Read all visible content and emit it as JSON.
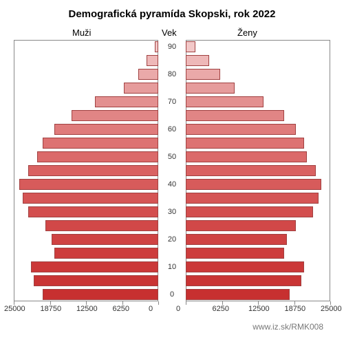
{
  "title": "Demografická pyramída Skopski, rok 2022",
  "labels": {
    "left": "Muži",
    "center": "Vek",
    "right": "Ženy"
  },
  "footer": "www.iz.sk/RMK008",
  "chart": {
    "type": "population-pyramid",
    "background_color": "#ffffff",
    "border_color": "#888888",
    "bar_border_color": "#a04040",
    "font_family": "Arial",
    "title_fontsize": 15,
    "label_fontsize": 13,
    "tick_fontsize": 11,
    "xlim": [
      0,
      25000
    ],
    "xtick_step": 6250,
    "xticks": [
      "25000",
      "18750",
      "12500",
      "6250",
      "0"
    ],
    "xticks_right": [
      "0",
      "6250",
      "12500",
      "18750",
      "25000"
    ],
    "yticks": [
      0,
      10,
      20,
      30,
      40,
      50,
      60,
      70,
      80,
      90
    ],
    "age_step": 5,
    "bars": [
      {
        "age": 0,
        "male": 20000,
        "female": 18000,
        "color_m": "#c73030",
        "color_f": "#c73030"
      },
      {
        "age": 5,
        "male": 21500,
        "female": 20000,
        "color_m": "#c93434",
        "color_f": "#c93434"
      },
      {
        "age": 10,
        "male": 22000,
        "female": 20500,
        "color_m": "#cb3838",
        "color_f": "#cb3838"
      },
      {
        "age": 15,
        "male": 18000,
        "female": 17000,
        "color_m": "#cd3c3c",
        "color_f": "#cd3c3c"
      },
      {
        "age": 20,
        "male": 18500,
        "female": 17500,
        "color_m": "#cf4242",
        "color_f": "#cf4242"
      },
      {
        "age": 25,
        "male": 19500,
        "female": 19000,
        "color_m": "#d14848",
        "color_f": "#d14848"
      },
      {
        "age": 30,
        "male": 22500,
        "female": 22000,
        "color_m": "#d34e4e",
        "color_f": "#d34e4e"
      },
      {
        "age": 35,
        "male": 23500,
        "female": 23000,
        "color_m": "#d55454",
        "color_f": "#d55454"
      },
      {
        "age": 40,
        "male": 24000,
        "female": 23500,
        "color_m": "#d75b5b",
        "color_f": "#d75b5b"
      },
      {
        "age": 45,
        "male": 22500,
        "female": 22500,
        "color_m": "#d96262",
        "color_f": "#d96262"
      },
      {
        "age": 50,
        "male": 21000,
        "female": 21000,
        "color_m": "#db6a6a",
        "color_f": "#db6a6a"
      },
      {
        "age": 55,
        "male": 20000,
        "female": 20500,
        "color_m": "#dd7272",
        "color_f": "#dd7272"
      },
      {
        "age": 60,
        "male": 18000,
        "female": 19000,
        "color_m": "#df7b7b",
        "color_f": "#df7b7b"
      },
      {
        "age": 65,
        "male": 15000,
        "female": 17000,
        "color_m": "#e18585",
        "color_f": "#e18585"
      },
      {
        "age": 70,
        "male": 11000,
        "female": 13500,
        "color_m": "#e39090",
        "color_f": "#e39090"
      },
      {
        "age": 75,
        "male": 6000,
        "female": 8500,
        "color_m": "#e69c9c",
        "color_f": "#e69c9c"
      },
      {
        "age": 80,
        "male": 3500,
        "female": 6000,
        "color_m": "#eaa9a9",
        "color_f": "#eaa9a9"
      },
      {
        "age": 85,
        "male": 2000,
        "female": 4000,
        "color_m": "#eeb8b8",
        "color_f": "#eeb8b8"
      },
      {
        "age": 90,
        "male": 600,
        "female": 1700,
        "color_m": "#f2c8c8",
        "color_f": "#f2c8c8"
      }
    ]
  }
}
